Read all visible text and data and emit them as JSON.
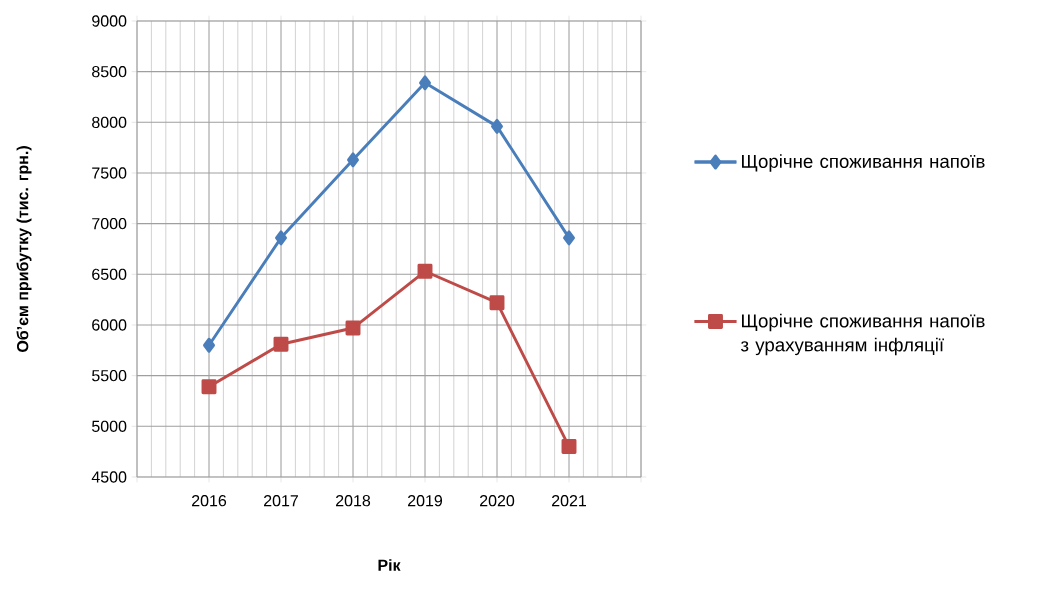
{
  "chart_data": {
    "type": "line",
    "xlabel": "Рік",
    "ylabel": "Об’єм прибутку (тис. грн.)",
    "x": [
      2016,
      2017,
      2018,
      2019,
      2020,
      2021
    ],
    "series": [
      {
        "name": "Щорічне споживання напоїв",
        "color": "#4a7ebb",
        "marker": "diamond",
        "values": [
          5800,
          6860,
          7630,
          8390,
          7960,
          6860
        ]
      },
      {
        "name": "Щорічне споживання напоїв з урахуванням інфляції",
        "color": "#be4b48",
        "marker": "square",
        "values": [
          5390,
          5810,
          5970,
          6530,
          6220,
          4800
        ]
      }
    ],
    "xlim": [
      2015,
      2022
    ],
    "xticks": [
      {
        "value": 2015,
        "label": null
      },
      2016,
      2017,
      2018,
      2019,
      2020,
      2021,
      {
        "value": 2022,
        "label": null
      }
    ],
    "ylim": [
      4500,
      9000
    ],
    "yticks": [
      4500,
      5000,
      5500,
      6000,
      6500,
      7000,
      7500,
      8000,
      8500,
      9000
    ],
    "grid": true,
    "legend": "right",
    "line_style": "solid"
  }
}
